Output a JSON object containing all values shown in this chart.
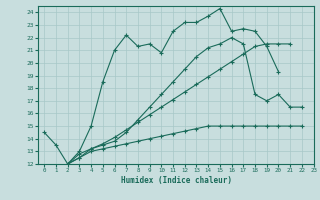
{
  "xlabel": "Humidex (Indice chaleur)",
  "background_color": "#c8dede",
  "grid_color": "#a8c8c8",
  "line_color": "#1a6b5a",
  "xlim": [
    -0.5,
    23
  ],
  "ylim": [
    12,
    24.5
  ],
  "xticks": [
    0,
    1,
    2,
    3,
    4,
    5,
    6,
    7,
    8,
    9,
    10,
    11,
    12,
    13,
    14,
    15,
    16,
    17,
    18,
    19,
    20,
    21,
    22,
    23
  ],
  "yticks": [
    12,
    13,
    14,
    15,
    16,
    17,
    18,
    19,
    20,
    21,
    22,
    23,
    24
  ],
  "line1_x": [
    0,
    1,
    2,
    3,
    4,
    5,
    6,
    7,
    8,
    9,
    10,
    11,
    12,
    13,
    14,
    15,
    16,
    17,
    18,
    19,
    20
  ],
  "line1_y": [
    14.5,
    13.5,
    12.0,
    13.0,
    15.0,
    18.5,
    21.0,
    22.2,
    21.3,
    21.5,
    20.8,
    22.5,
    23.2,
    23.2,
    23.7,
    24.3,
    22.5,
    22.7,
    22.5,
    21.3,
    19.3
  ],
  "line2_x": [
    2,
    3,
    4,
    5,
    6,
    7,
    8,
    9,
    10,
    11,
    12,
    13,
    14,
    15,
    16,
    17,
    18,
    19,
    20,
    21,
    22
  ],
  "line2_y": [
    12.0,
    12.5,
    13.2,
    13.5,
    13.8,
    14.5,
    15.5,
    16.5,
    17.5,
    18.5,
    19.5,
    20.5,
    21.2,
    21.5,
    22.0,
    21.5,
    17.5,
    17.0,
    17.5,
    16.5,
    16.5
  ],
  "line3_x": [
    2,
    3,
    4,
    5,
    6,
    7,
    8,
    9,
    10,
    11,
    12,
    13,
    14,
    15,
    16,
    17,
    18,
    19,
    20,
    21,
    22
  ],
  "line3_y": [
    12.0,
    12.5,
    13.0,
    13.2,
    13.4,
    13.6,
    13.8,
    14.0,
    14.2,
    14.4,
    14.6,
    14.8,
    15.0,
    15.0,
    15.0,
    15.0,
    15.0,
    15.0,
    15.0,
    15.0,
    15.0
  ],
  "line4_x": [
    2,
    3,
    4,
    5,
    6,
    7,
    8,
    9,
    10,
    11,
    12,
    13,
    14,
    15,
    16,
    17,
    18,
    19,
    20,
    21
  ],
  "line4_y": [
    12.0,
    12.8,
    13.2,
    13.6,
    14.1,
    14.7,
    15.3,
    15.9,
    16.5,
    17.1,
    17.7,
    18.3,
    18.9,
    19.5,
    20.1,
    20.7,
    21.3,
    21.5,
    21.5,
    21.5
  ]
}
